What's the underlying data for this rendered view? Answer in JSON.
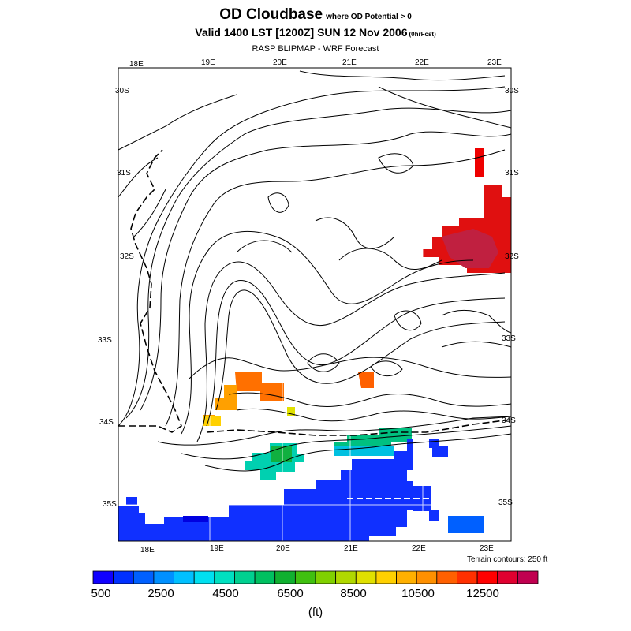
{
  "header": {
    "title": "OD Cloudbase",
    "title_sub": "where OD Potential > 0",
    "valid_line": "Valid 1400 LST [1200Z] SUN 12 Nov 2006",
    "valid_sub": "(0hrFcst)",
    "source_line": "RASP BLIPMAP - WRF Forecast"
  },
  "map": {
    "top_lon_labels": [
      "18E",
      "19E",
      "20E",
      "21E",
      "22E",
      "23E"
    ],
    "bottom_lon_labels": [
      "18E",
      "19E",
      "20E",
      "21E",
      "22E",
      "23E"
    ],
    "left_lat_labels": [
      "30S",
      "31S",
      "32S",
      "33S",
      "34S",
      "35S"
    ],
    "right_lat_labels": [
      "30S",
      "31S",
      "32S",
      "33S",
      "34S",
      "35S"
    ],
    "terrain_note": "Terrain contours: 250 ft"
  },
  "colorbar": {
    "colors": [
      "#1000ff",
      "#0030ff",
      "#0060ff",
      "#0090ff",
      "#00c0ff",
      "#00e0f0",
      "#00e0c0",
      "#00d090",
      "#00c060",
      "#10b030",
      "#40c010",
      "#80d000",
      "#b0d800",
      "#e0e000",
      "#ffd000",
      "#ffb000",
      "#ff9000",
      "#ff6000",
      "#ff3000",
      "#ff0000",
      "#e00030",
      "#c00050"
    ],
    "tick_labels": [
      "500",
      "2500",
      "4500",
      "6500",
      "8500",
      "10500",
      "12500"
    ],
    "units": "(ft)"
  }
}
